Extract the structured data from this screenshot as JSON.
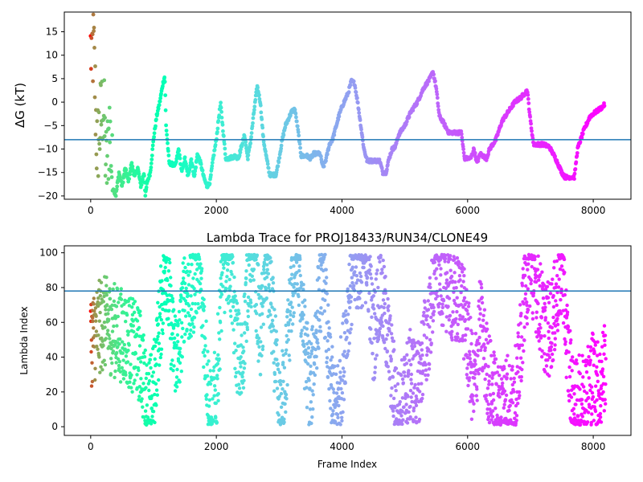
{
  "chart_data": [
    {
      "type": "scatter",
      "title": "",
      "xlabel": "",
      "ylabel": "ΔG (kT)",
      "xlim": [
        -420,
        8600
      ],
      "ylim": [
        -20.7,
        19.2
      ],
      "xticks": [
        0,
        2000,
        4000,
        6000,
        8000
      ],
      "yticks": [
        -20,
        -15,
        -10,
        -5,
        0,
        5,
        10,
        15
      ],
      "color_by": "lambda_state",
      "hline": -8,
      "hline_color": "#1f77b4",
      "trace_anchors": [
        [
          50,
          11
        ],
        [
          100,
          -10
        ],
        [
          200,
          0
        ],
        [
          250,
          -15
        ],
        [
          300,
          -5
        ],
        [
          350,
          -18
        ],
        [
          400,
          -20
        ],
        [
          450,
          -15
        ],
        [
          500,
          -18
        ],
        [
          550,
          -14
        ],
        [
          600,
          -17
        ],
        [
          650,
          -13
        ],
        [
          700,
          -16
        ],
        [
          750,
          -14
        ],
        [
          800,
          -18
        ],
        [
          850,
          -15
        ],
        [
          870,
          -20
        ],
        [
          900,
          -17
        ],
        [
          950,
          -15
        ],
        [
          1000,
          -8
        ],
        [
          1050,
          -3
        ],
        [
          1100,
          0
        ],
        [
          1150,
          4
        ],
        [
          1180,
          5.5
        ],
        [
          1200,
          -5
        ],
        [
          1250,
          -13
        ],
        [
          1350,
          -13.5
        ],
        [
          1400,
          -10
        ],
        [
          1450,
          -15
        ],
        [
          1500,
          -12
        ],
        [
          1550,
          -16
        ],
        [
          1600,
          -12
        ],
        [
          1650,
          -16
        ],
        [
          1700,
          -11
        ],
        [
          1750,
          -13
        ],
        [
          1800,
          -16
        ],
        [
          1850,
          -18
        ],
        [
          1900,
          -17
        ],
        [
          1950,
          -12
        ],
        [
          2000,
          -8
        ],
        [
          2050,
          -2
        ],
        [
          2070,
          -0.5
        ],
        [
          2100,
          -5
        ],
        [
          2150,
          -12
        ],
        [
          2200,
          -12
        ],
        [
          2300,
          -11.5
        ],
        [
          2350,
          -12
        ],
        [
          2450,
          -7
        ],
        [
          2500,
          -12
        ],
        [
          2550,
          -8
        ],
        [
          2600,
          -2
        ],
        [
          2650,
          3.5
        ],
        [
          2700,
          0
        ],
        [
          2750,
          -8
        ],
        [
          2800,
          -12
        ],
        [
          2850,
          -15.5
        ],
        [
          2950,
          -15.5
        ],
        [
          3000,
          -12
        ],
        [
          3050,
          -8
        ],
        [
          3100,
          -5
        ],
        [
          3200,
          -2
        ],
        [
          3250,
          -1.5
        ],
        [
          3300,
          -6
        ],
        [
          3350,
          -11.5
        ],
        [
          3450,
          -11.5
        ],
        [
          3500,
          -12
        ],
        [
          3550,
          -11
        ],
        [
          3650,
          -11
        ],
        [
          3700,
          -14
        ],
        [
          3750,
          -12
        ],
        [
          3800,
          -9
        ],
        [
          3850,
          -8
        ],
        [
          3950,
          -3
        ],
        [
          4000,
          -1
        ],
        [
          4100,
          2
        ],
        [
          4150,
          4.5
        ],
        [
          4200,
          4
        ],
        [
          4250,
          0
        ],
        [
          4300,
          -5
        ],
        [
          4350,
          -10
        ],
        [
          4400,
          -12.5
        ],
        [
          4600,
          -12.5
        ],
        [
          4650,
          -15
        ],
        [
          4700,
          -15
        ],
        [
          4750,
          -12
        ],
        [
          4800,
          -10
        ],
        [
          4850,
          -9.5
        ],
        [
          4900,
          -7
        ],
        [
          5000,
          -5
        ],
        [
          5100,
          -2
        ],
        [
          5200,
          0
        ],
        [
          5300,
          3
        ],
        [
          5400,
          5
        ],
        [
          5450,
          6.5
        ],
        [
          5500,
          3
        ],
        [
          5550,
          -3
        ],
        [
          5600,
          -4
        ],
        [
          5700,
          -6.5
        ],
        [
          5900,
          -6.5
        ],
        [
          5950,
          -12
        ],
        [
          6050,
          -12
        ],
        [
          6100,
          -10
        ],
        [
          6150,
          -13
        ],
        [
          6200,
          -11
        ],
        [
          6300,
          -12
        ],
        [
          6350,
          -10
        ],
        [
          6450,
          -8
        ],
        [
          6550,
          -4
        ],
        [
          6650,
          -2
        ],
        [
          6750,
          0
        ],
        [
          6850,
          1
        ],
        [
          6950,
          2.5
        ],
        [
          7000,
          -4
        ],
        [
          7050,
          -9
        ],
        [
          7200,
          -9
        ],
        [
          7300,
          -9.5
        ],
        [
          7400,
          -12
        ],
        [
          7500,
          -15
        ],
        [
          7550,
          -16
        ],
        [
          7700,
          -16
        ],
        [
          7750,
          -10
        ],
        [
          7850,
          -6
        ],
        [
          7950,
          -3
        ],
        [
          8050,
          -2
        ],
        [
          8150,
          -1
        ],
        [
          8180,
          -0.5
        ]
      ]
    },
    {
      "type": "scatter",
      "title": "Lambda Trace for PROJ18433/RUN34/CLONE49",
      "xlabel": "Frame Index",
      "ylabel": "Lambda Index",
      "xlim": [
        -420,
        8600
      ],
      "ylim": [
        -5,
        104
      ],
      "xticks": [
        0,
        2000,
        4000,
        6000,
        8000
      ],
      "yticks": [
        0,
        20,
        40,
        60,
        80,
        100
      ],
      "lambda_range": [
        0,
        99
      ],
      "color_by": "lambda_state",
      "hline": 78,
      "hline_color": "#1f77b4",
      "sweep_anchors": [
        [
          0,
          50
        ],
        [
          200,
          60
        ],
        [
          400,
          55
        ],
        [
          600,
          50
        ],
        [
          800,
          40
        ],
        [
          900,
          10
        ],
        [
          1000,
          20
        ],
        [
          1100,
          60
        ],
        [
          1200,
          95
        ],
        [
          1300,
          50
        ],
        [
          1400,
          40
        ],
        [
          1500,
          80
        ],
        [
          1600,
          70
        ],
        [
          1700,
          95
        ],
        [
          1800,
          60
        ],
        [
          1900,
          5
        ],
        [
          2000,
          20
        ],
        [
          2100,
          90
        ],
        [
          2200,
          99
        ],
        [
          2300,
          55
        ],
        [
          2400,
          30
        ],
        [
          2500,
          85
        ],
        [
          2600,
          99
        ],
        [
          2700,
          50
        ],
        [
          2800,
          95
        ],
        [
          2900,
          60
        ],
        [
          3000,
          5
        ],
        [
          3100,
          30
        ],
        [
          3200,
          80
        ],
        [
          3300,
          99
        ],
        [
          3400,
          50
        ],
        [
          3500,
          20
        ],
        [
          3600,
          60
        ],
        [
          3700,
          95
        ],
        [
          3800,
          30
        ],
        [
          3900,
          5
        ],
        [
          4000,
          30
        ],
        [
          4100,
          70
        ],
        [
          4200,
          90
        ],
        [
          4300,
          95
        ],
        [
          4400,
          99
        ],
        [
          4500,
          50
        ],
        [
          4600,
          80
        ],
        [
          4700,
          60
        ],
        [
          4800,
          30
        ],
        [
          4900,
          5
        ],
        [
          5000,
          20
        ],
        [
          5100,
          30
        ],
        [
          5200,
          20
        ],
        [
          5300,
          45
        ],
        [
          5400,
          60
        ],
        [
          5500,
          95
        ],
        [
          5600,
          85
        ],
        [
          5700,
          80
        ],
        [
          5800,
          70
        ],
        [
          5900,
          75
        ],
        [
          6000,
          50
        ],
        [
          6100,
          20
        ],
        [
          6200,
          60
        ],
        [
          6300,
          35
        ],
        [
          6400,
          20
        ],
        [
          6500,
          10
        ],
        [
          6600,
          20
        ],
        [
          6700,
          10
        ],
        [
          6800,
          25
        ],
        [
          6900,
          75
        ],
        [
          7000,
          95
        ],
        [
          7100,
          80
        ],
        [
          7200,
          60
        ],
        [
          7300,
          55
        ],
        [
          7400,
          70
        ],
        [
          7500,
          95
        ],
        [
          7600,
          40
        ],
        [
          7700,
          10
        ],
        [
          7800,
          15
        ],
        [
          7900,
          20
        ],
        [
          8000,
          30
        ],
        [
          8100,
          20
        ],
        [
          8200,
          40
        ]
      ]
    }
  ]
}
